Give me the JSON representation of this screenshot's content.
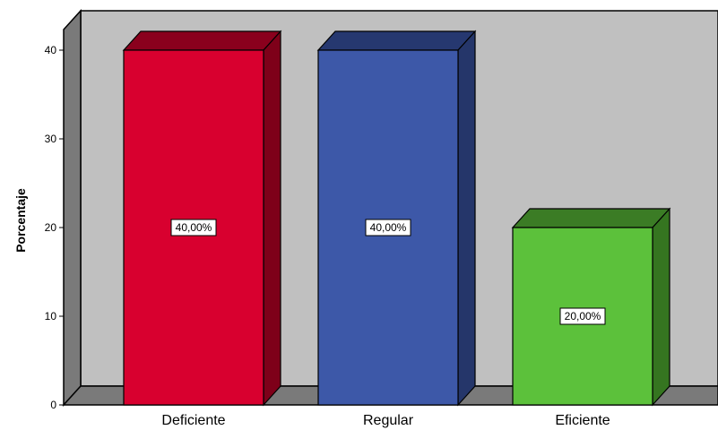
{
  "chart_data": {
    "type": "bar",
    "title": "",
    "xlabel": "",
    "ylabel": "Porcentaje",
    "categories": [
      "Deficiente",
      "Regular",
      "Eficiente"
    ],
    "values": [
      40,
      40,
      20
    ],
    "data_labels": [
      "40,00%",
      "40,00%",
      "20,00%"
    ],
    "ylim": [
      0,
      40
    ],
    "yticks": [
      0,
      10,
      20,
      30,
      40
    ],
    "ytick_labels": [
      "0",
      "10",
      "20",
      "30",
      "40"
    ],
    "grid": false,
    "legend": "none",
    "style": "3d",
    "colors": {
      "front": [
        "#d8002f",
        "#3d58a8",
        "#5cc13b"
      ],
      "top": [
        "#8a001d",
        "#263870",
        "#3b7c25"
      ],
      "side": [
        "#7e0019",
        "#25366a",
        "#357520"
      ],
      "wall": "#c0c0c0",
      "wall_side": "#7a7a7a",
      "floor": "#7a7a7a"
    }
  }
}
